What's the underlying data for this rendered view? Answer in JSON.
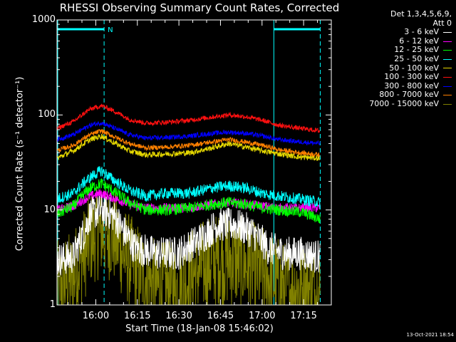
{
  "chart_data": {
    "type": "line",
    "title": "RHESSI Observing Summary Count Rates, Corrected",
    "xlabel": "Start Time (18-Jan-08 15:46:02)",
    "ylabel": "Corrected Count Rate (s⁻¹ detector⁻¹)",
    "yscale": "log",
    "ylim": [
      1,
      1000
    ],
    "xlim_minutes": [
      0,
      99
    ],
    "x_ticks": [
      {
        "label": "16:00",
        "minutes": 14
      },
      {
        "label": "16:15",
        "minutes": 29
      },
      {
        "label": "16:30",
        "minutes": 44
      },
      {
        "label": "16:45",
        "minutes": 59
      },
      {
        "label": "17:00",
        "minutes": 74
      },
      {
        "label": "17:15",
        "minutes": 89
      }
    ],
    "y_ticks": [
      {
        "label": "1000",
        "value": 1000
      },
      {
        "label": "100",
        "value": 100
      },
      {
        "label": "10",
        "value": 10
      },
      {
        "label": "1",
        "value": 1
      }
    ],
    "legend_header": [
      "Det 1,3,4,5,6,9,",
      "Att 0"
    ],
    "night_intervals_minutes": [
      [
        0,
        17
      ],
      [
        78,
        95
      ]
    ],
    "night_marker": "N",
    "series": [
      {
        "name": "3 - 6 keV",
        "color": "#ffffff",
        "noise": 0.18,
        "x": [
          0,
          6,
          10,
          12,
          16,
          20,
          24,
          28,
          36,
          44,
          52,
          58,
          64,
          70,
          76,
          82,
          88,
          95
        ],
        "y": [
          3,
          3.2,
          6,
          9,
          10,
          9,
          6,
          4,
          3.5,
          3.5,
          5,
          7,
          7,
          6,
          4,
          3.5,
          3.5,
          3.2
        ]
      },
      {
        "name": "6 - 12 keV",
        "color": "#ff00ff",
        "noise": 0.05,
        "x": [
          0,
          6,
          12,
          16,
          20,
          26,
          32,
          40,
          48,
          56,
          62,
          68,
          74,
          80,
          88,
          95
        ],
        "y": [
          10,
          11,
          14,
          15,
          13.5,
          11.5,
          10.5,
          10.5,
          10.5,
          11.5,
          12,
          11.5,
          11,
          10.5,
          10.5,
          10.5
        ]
      },
      {
        "name": "12 - 25 keV",
        "color": "#00ff00",
        "noise": 0.06,
        "x": [
          0,
          6,
          12,
          16,
          20,
          26,
          32,
          40,
          48,
          56,
          62,
          68,
          74,
          80,
          88,
          95
        ],
        "y": [
          9,
          11,
          17,
          19,
          16,
          12,
          10,
          10,
          10.5,
          11.5,
          12,
          11.5,
          10.5,
          10,
          9.5,
          8
        ]
      },
      {
        "name": "25 - 50 keV",
        "color": "#00ffff",
        "noise": 0.06,
        "x": [
          0,
          6,
          12,
          16,
          20,
          26,
          32,
          40,
          48,
          56,
          62,
          68,
          74,
          80,
          88,
          95
        ],
        "y": [
          13,
          15,
          22,
          26,
          21,
          16,
          14,
          15,
          15,
          17,
          18,
          17,
          15,
          14,
          13,
          12
        ]
      },
      {
        "name": "50 - 100 keV",
        "color": "#e6d800",
        "noise": 0.03,
        "x": [
          0,
          6,
          12,
          16,
          20,
          26,
          32,
          40,
          48,
          56,
          62,
          68,
          74,
          80,
          88,
          95
        ],
        "y": [
          35,
          42,
          55,
          60,
          52,
          42,
          38,
          39,
          40,
          45,
          50,
          46,
          42,
          39,
          36,
          35
        ]
      },
      {
        "name": "100 - 300 keV",
        "color": "#ff1010",
        "noise": 0.025,
        "x": [
          0,
          6,
          12,
          16,
          20,
          26,
          32,
          40,
          48,
          56,
          62,
          68,
          74,
          80,
          88,
          95
        ],
        "y": [
          72,
          85,
          115,
          125,
          112,
          90,
          82,
          84,
          88,
          95,
          100,
          96,
          88,
          78,
          72,
          68
        ]
      },
      {
        "name": "300 - 800 keV",
        "color": "#0000ff",
        "noise": 0.025,
        "x": [
          0,
          6,
          12,
          16,
          20,
          26,
          32,
          40,
          48,
          56,
          62,
          68,
          74,
          80,
          88,
          95
        ],
        "y": [
          55,
          62,
          78,
          83,
          74,
          62,
          57,
          58,
          60,
          64,
          66,
          64,
          60,
          55,
          52,
          50
        ]
      },
      {
        "name": "800 - 7000 keV",
        "color": "#ff8000",
        "noise": 0.025,
        "x": [
          0,
          6,
          12,
          16,
          20,
          26,
          32,
          40,
          48,
          56,
          62,
          68,
          74,
          80,
          88,
          95
        ],
        "y": [
          42,
          48,
          62,
          68,
          60,
          50,
          45,
          46,
          48,
          52,
          55,
          52,
          48,
          43,
          40,
          38
        ]
      },
      {
        "name": "7000 - 15000 keV",
        "color": "#808000",
        "noise": 0.5,
        "x": [
          0,
          6,
          10,
          12,
          16,
          20,
          24,
          28,
          36,
          44,
          52,
          58,
          64,
          70,
          76,
          82,
          88,
          95
        ],
        "y": [
          1.5,
          2,
          3.5,
          5,
          6,
          5.5,
          3.5,
          2.5,
          1.5,
          1.5,
          2.5,
          3,
          3,
          2.5,
          2,
          1.5,
          1.5,
          1.3
        ]
      }
    ]
  },
  "footer": {
    "timestamp": "13-Oct-2021 18:54"
  }
}
